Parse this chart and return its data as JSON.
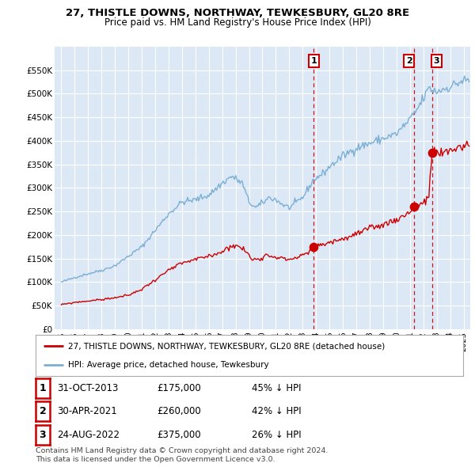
{
  "title": "27, THISTLE DOWNS, NORTHWAY, TEWKESBURY, GL20 8RE",
  "subtitle": "Price paid vs. HM Land Registry's House Price Index (HPI)",
  "legend_label_red": "27, THISTLE DOWNS, NORTHWAY, TEWKESBURY, GL20 8RE (detached house)",
  "legend_label_blue": "HPI: Average price, detached house, Tewkesbury",
  "footer1": "Contains HM Land Registry data © Crown copyright and database right 2024.",
  "footer2": "This data is licensed under the Open Government Licence v3.0.",
  "sales": [
    {
      "num": "1",
      "date": "31-OCT-2013",
      "price": "£175,000",
      "pct": "45% ↓ HPI"
    },
    {
      "num": "2",
      "date": "30-APR-2021",
      "price": "£260,000",
      "pct": "42% ↓ HPI"
    },
    {
      "num": "3",
      "date": "24-AUG-2022",
      "price": "£375,000",
      "pct": "26% ↓ HPI"
    }
  ],
  "sale_years": [
    2013.83,
    2021.33,
    2022.64
  ],
  "sale_prices": [
    175000,
    260000,
    375000
  ],
  "ylim": [
    0,
    600000
  ],
  "yticks": [
    0,
    50000,
    100000,
    150000,
    200000,
    250000,
    300000,
    350000,
    400000,
    450000,
    500000,
    550000
  ],
  "ytick_labels": [
    "£0",
    "£50K",
    "£100K",
    "£150K",
    "£200K",
    "£250K",
    "£300K",
    "£350K",
    "£400K",
    "£450K",
    "£500K",
    "£550K"
  ],
  "xlim": [
    1994.5,
    2025.5
  ],
  "color_red": "#cc0000",
  "color_blue": "#7bafd4",
  "background_color": "#dce8f5",
  "num_label_box_color": "#cc0000"
}
